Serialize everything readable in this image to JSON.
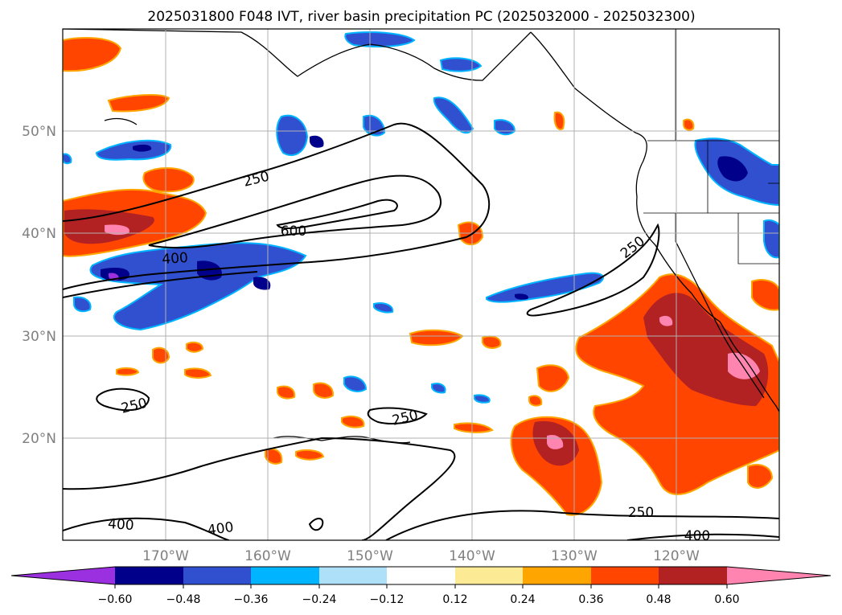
{
  "title": "2025031800 F048 IVT, river basin precipitation PC (2025032000 - 2025032300)",
  "map": {
    "lon_labels": [
      "170°W",
      "160°W",
      "150°W",
      "140°W",
      "130°W",
      "120°W"
    ],
    "lat_labels": [
      "50°N",
      "40°N",
      "30°N",
      "20°N"
    ],
    "contour_labels": [
      "250",
      "600",
      "400",
      "250",
      "250",
      "250",
      "400",
      "400",
      "250",
      "400"
    ]
  },
  "colorbar": {
    "ticks": [
      "−0.60",
      "−0.48",
      "−0.36",
      "−0.24",
      "−0.12",
      "0.12",
      "0.24",
      "0.36",
      "0.48",
      "0.60"
    ],
    "colors": [
      "#9b30e0",
      "#00008b",
      "#3050d0",
      "#00b4ff",
      "#aee0fa",
      "#ffffff",
      "#fdea94",
      "#ffa500",
      "#ff4500",
      "#b22222",
      "#ff85b0"
    ]
  },
  "colors": {
    "pos_1": "#fdea94",
    "pos_2": "#ffa500",
    "pos_3": "#ff4500",
    "pos_4": "#b22222",
    "pos_5": "#ff85b0",
    "neg_1": "#aee0fa",
    "neg_2": "#00b4ff",
    "neg_3": "#3050d0",
    "neg_4": "#00008b",
    "neg_5": "#9b30e0",
    "grid": "#b0b0b0",
    "tick_text": "#808080"
  }
}
